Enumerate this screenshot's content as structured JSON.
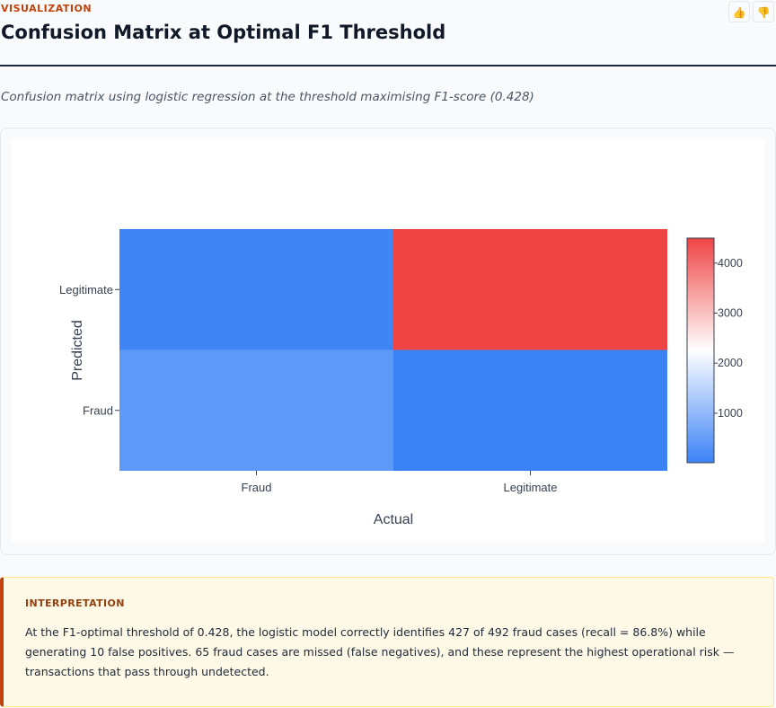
{
  "header": {
    "section_label": "VISUALIZATION",
    "title": "Confusion Matrix at Optimal F1 Threshold",
    "thumbs_up_icon": "thumbs-up-icon",
    "thumbs_down_icon": "thumbs-down-icon"
  },
  "subtitle": "Confusion matrix using logistic regression at the threshold maximising F1-score (0.428)",
  "chart_data": {
    "type": "heatmap",
    "xlabel": "Actual",
    "ylabel": "Predicted",
    "x_categories": [
      "Fraud",
      "Legitimate"
    ],
    "y_categories": [
      "Fraud",
      "Legitimate"
    ],
    "z": [
      [
        427,
        10
      ],
      [
        65,
        4500
      ]
    ],
    "colorscale": [
      [
        0,
        "#3b82f6"
      ],
      [
        0.5,
        "#ffffff"
      ],
      [
        1,
        "#ef4444"
      ]
    ],
    "zmin": 10,
    "zmax": 4500,
    "colorbar_ticks": [
      1000,
      2000,
      3000,
      4000
    ],
    "grid": false,
    "legend": "right"
  },
  "interpretation": {
    "label": "INTERPRETATION",
    "text": "At the F1-optimal threshold of 0.428, the logistic model correctly identifies 427 of 492 fraud cases (recall = 86.8%) while generating 10 false positives. 65 fraud cases are missed (false negatives), and these represent the highest operational risk — transactions that pass through undetected."
  }
}
